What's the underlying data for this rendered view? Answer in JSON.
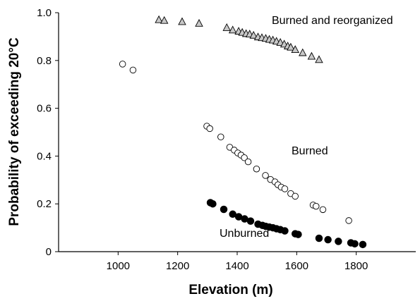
{
  "chart_data": {
    "type": "scatter",
    "xlabel": "Elevation (m)",
    "ylabel": "Probability of exceeding 20°C",
    "xlim": [
      800,
      2000
    ],
    "ylim": [
      0,
      1.0
    ],
    "x_ticks": [
      1000,
      1200,
      1400,
      1600,
      1800
    ],
    "x_tick_labels": [
      "1000",
      "1200",
      "1400",
      "1600",
      "1800"
    ],
    "y_ticks": [
      0,
      0.2,
      0.4,
      0.6,
      0.8,
      1.0
    ],
    "y_tick_labels": [
      "0",
      "0.2",
      "0.4",
      "0.6",
      "0.8",
      "1.0"
    ],
    "grid": false,
    "series": [
      {
        "name": "Burned and reorganized",
        "marker": "triangle",
        "fill": "#c8c8c8",
        "stroke": "#000000",
        "points": [
          [
            1137,
            0.97
          ],
          [
            1155,
            0.967
          ],
          [
            1215,
            0.962
          ],
          [
            1272,
            0.955
          ],
          [
            1365,
            0.937
          ],
          [
            1385,
            0.927
          ],
          [
            1405,
            0.922
          ],
          [
            1417,
            0.917
          ],
          [
            1430,
            0.912
          ],
          [
            1442,
            0.91
          ],
          [
            1455,
            0.905
          ],
          [
            1470,
            0.898
          ],
          [
            1483,
            0.895
          ],
          [
            1496,
            0.892
          ],
          [
            1508,
            0.888
          ],
          [
            1520,
            0.885
          ],
          [
            1532,
            0.88
          ],
          [
            1545,
            0.875
          ],
          [
            1558,
            0.868
          ],
          [
            1570,
            0.86
          ],
          [
            1580,
            0.855
          ],
          [
            1595,
            0.845
          ],
          [
            1620,
            0.832
          ],
          [
            1650,
            0.817
          ],
          [
            1675,
            0.803
          ]
        ]
      },
      {
        "name": "Burned",
        "marker": "circle",
        "fill": "#ffffff",
        "stroke": "#000000",
        "points": [
          [
            1015,
            0.785
          ],
          [
            1050,
            0.76
          ],
          [
            1298,
            0.525
          ],
          [
            1308,
            0.515
          ],
          [
            1345,
            0.48
          ],
          [
            1375,
            0.437
          ],
          [
            1390,
            0.425
          ],
          [
            1402,
            0.413
          ],
          [
            1413,
            0.404
          ],
          [
            1424,
            0.393
          ],
          [
            1437,
            0.376
          ],
          [
            1465,
            0.346
          ],
          [
            1495,
            0.319
          ],
          [
            1512,
            0.302
          ],
          [
            1527,
            0.292
          ],
          [
            1537,
            0.28
          ],
          [
            1548,
            0.27
          ],
          [
            1560,
            0.263
          ],
          [
            1580,
            0.243
          ],
          [
            1595,
            0.232
          ],
          [
            1655,
            0.195
          ],
          [
            1665,
            0.19
          ],
          [
            1688,
            0.176
          ],
          [
            1775,
            0.13
          ]
        ]
      },
      {
        "name": "Unburned",
        "marker": "circle",
        "fill": "#000000",
        "stroke": "#000000",
        "points": [
          [
            1310,
            0.205
          ],
          [
            1318,
            0.2
          ],
          [
            1355,
            0.177
          ],
          [
            1385,
            0.157
          ],
          [
            1405,
            0.146
          ],
          [
            1425,
            0.137
          ],
          [
            1445,
            0.128
          ],
          [
            1470,
            0.115
          ],
          [
            1485,
            0.11
          ],
          [
            1496,
            0.106
          ],
          [
            1508,
            0.103
          ],
          [
            1520,
            0.1
          ],
          [
            1532,
            0.096
          ],
          [
            1545,
            0.092
          ],
          [
            1560,
            0.087
          ],
          [
            1595,
            0.075
          ],
          [
            1605,
            0.072
          ],
          [
            1675,
            0.056
          ],
          [
            1705,
            0.05
          ],
          [
            1740,
            0.043
          ],
          [
            1782,
            0.037
          ],
          [
            1795,
            0.033
          ],
          [
            1822,
            0.03
          ]
        ]
      }
    ],
    "annotations": [
      {
        "text": "Burned and reorganized",
        "series": "Burned and reorganized"
      },
      {
        "text": "Burned",
        "series": "Burned"
      },
      {
        "text": "Unburned",
        "series": "Unburned"
      }
    ]
  }
}
